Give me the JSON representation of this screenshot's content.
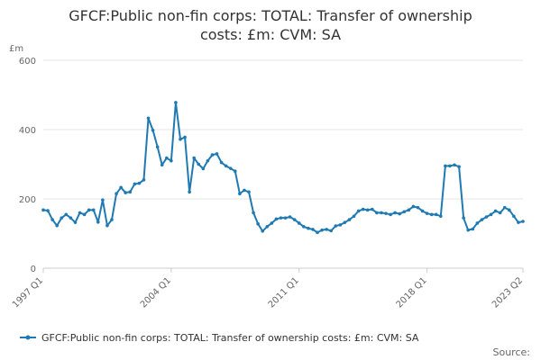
{
  "chart_data": {
    "type": "line",
    "title_lines": [
      "GFCF:Public non-fin corps: TOTAL: Transfer of ownership",
      "costs: £m: CVM: SA"
    ],
    "y_unit": "£m",
    "ylim": [
      0,
      600
    ],
    "y_ticks": [
      0,
      200,
      400,
      600
    ],
    "x_ticks": [
      "1997 Q1",
      "2004 Q1",
      "2011 Q1",
      "2018 Q1",
      "2023 Q2"
    ],
    "grid": true,
    "legend_position": "bottom",
    "source_label": "Source:",
    "colors": {
      "series": "#1f7ab3",
      "grid": "#e6e6e6",
      "axis": "#cccccc"
    },
    "series": [
      {
        "name": "GFCF:Public non-fin corps: TOTAL: Transfer of ownership costs: £m: CVM: SA",
        "x": [
          "1997 Q1",
          "1997 Q2",
          "1997 Q3",
          "1997 Q4",
          "1998 Q1",
          "1998 Q2",
          "1998 Q3",
          "1998 Q4",
          "1999 Q1",
          "1999 Q2",
          "1999 Q3",
          "1999 Q4",
          "2000 Q1",
          "2000 Q2",
          "2000 Q3",
          "2000 Q4",
          "2001 Q1",
          "2001 Q2",
          "2001 Q3",
          "2001 Q4",
          "2002 Q1",
          "2002 Q2",
          "2002 Q3",
          "2002 Q4",
          "2003 Q1",
          "2003 Q2",
          "2003 Q3",
          "2003 Q4",
          "2004 Q1",
          "2004 Q2",
          "2004 Q3",
          "2004 Q4",
          "2005 Q1",
          "2005 Q2",
          "2005 Q3",
          "2005 Q4",
          "2006 Q1",
          "2006 Q2",
          "2006 Q3",
          "2006 Q4",
          "2007 Q1",
          "2007 Q2",
          "2007 Q3",
          "2007 Q4",
          "2008 Q1",
          "2008 Q2",
          "2008 Q3",
          "2008 Q4",
          "2009 Q1",
          "2009 Q2",
          "2009 Q3",
          "2009 Q4",
          "2010 Q1",
          "2010 Q2",
          "2010 Q3",
          "2010 Q4",
          "2011 Q1",
          "2011 Q2",
          "2011 Q3",
          "2011 Q4",
          "2012 Q1",
          "2012 Q2",
          "2012 Q3",
          "2012 Q4",
          "2013 Q1",
          "2013 Q2",
          "2013 Q3",
          "2013 Q4",
          "2014 Q1",
          "2014 Q2",
          "2014 Q3",
          "2014 Q4",
          "2015 Q1",
          "2015 Q2",
          "2015 Q3",
          "2015 Q4",
          "2016 Q1",
          "2016 Q2",
          "2016 Q3",
          "2016 Q4",
          "2017 Q1",
          "2017 Q2",
          "2017 Q3",
          "2017 Q4",
          "2018 Q1",
          "2018 Q2",
          "2018 Q3",
          "2018 Q4",
          "2019 Q1",
          "2019 Q2",
          "2019 Q3",
          "2019 Q4",
          "2020 Q1",
          "2020 Q2",
          "2020 Q3",
          "2020 Q4",
          "2021 Q1",
          "2021 Q2",
          "2021 Q3",
          "2021 Q4",
          "2022 Q1",
          "2022 Q2",
          "2022 Q3",
          "2022 Q4",
          "2023 Q1",
          "2023 Q2"
        ],
        "values": [
          168,
          166,
          140,
          123,
          145,
          155,
          145,
          132,
          160,
          155,
          168,
          168,
          133,
          197,
          123,
          140,
          215,
          233,
          218,
          220,
          243,
          245,
          255,
          433,
          398,
          350,
          298,
          318,
          310,
          478,
          372,
          378,
          220,
          318,
          300,
          287,
          310,
          327,
          330,
          305,
          295,
          288,
          280,
          215,
          225,
          220,
          160,
          128,
          107,
          120,
          130,
          142,
          145,
          145,
          148,
          140,
          130,
          120,
          115,
          112,
          103,
          110,
          112,
          108,
          122,
          125,
          132,
          140,
          150,
          165,
          170,
          168,
          170,
          160,
          160,
          158,
          155,
          160,
          157,
          163,
          168,
          178,
          175,
          165,
          158,
          155,
          155,
          150,
          295,
          295,
          298,
          293,
          145,
          110,
          113,
          130,
          140,
          148,
          155,
          165,
          160,
          175,
          168,
          150,
          132,
          135
        ]
      }
    ]
  }
}
